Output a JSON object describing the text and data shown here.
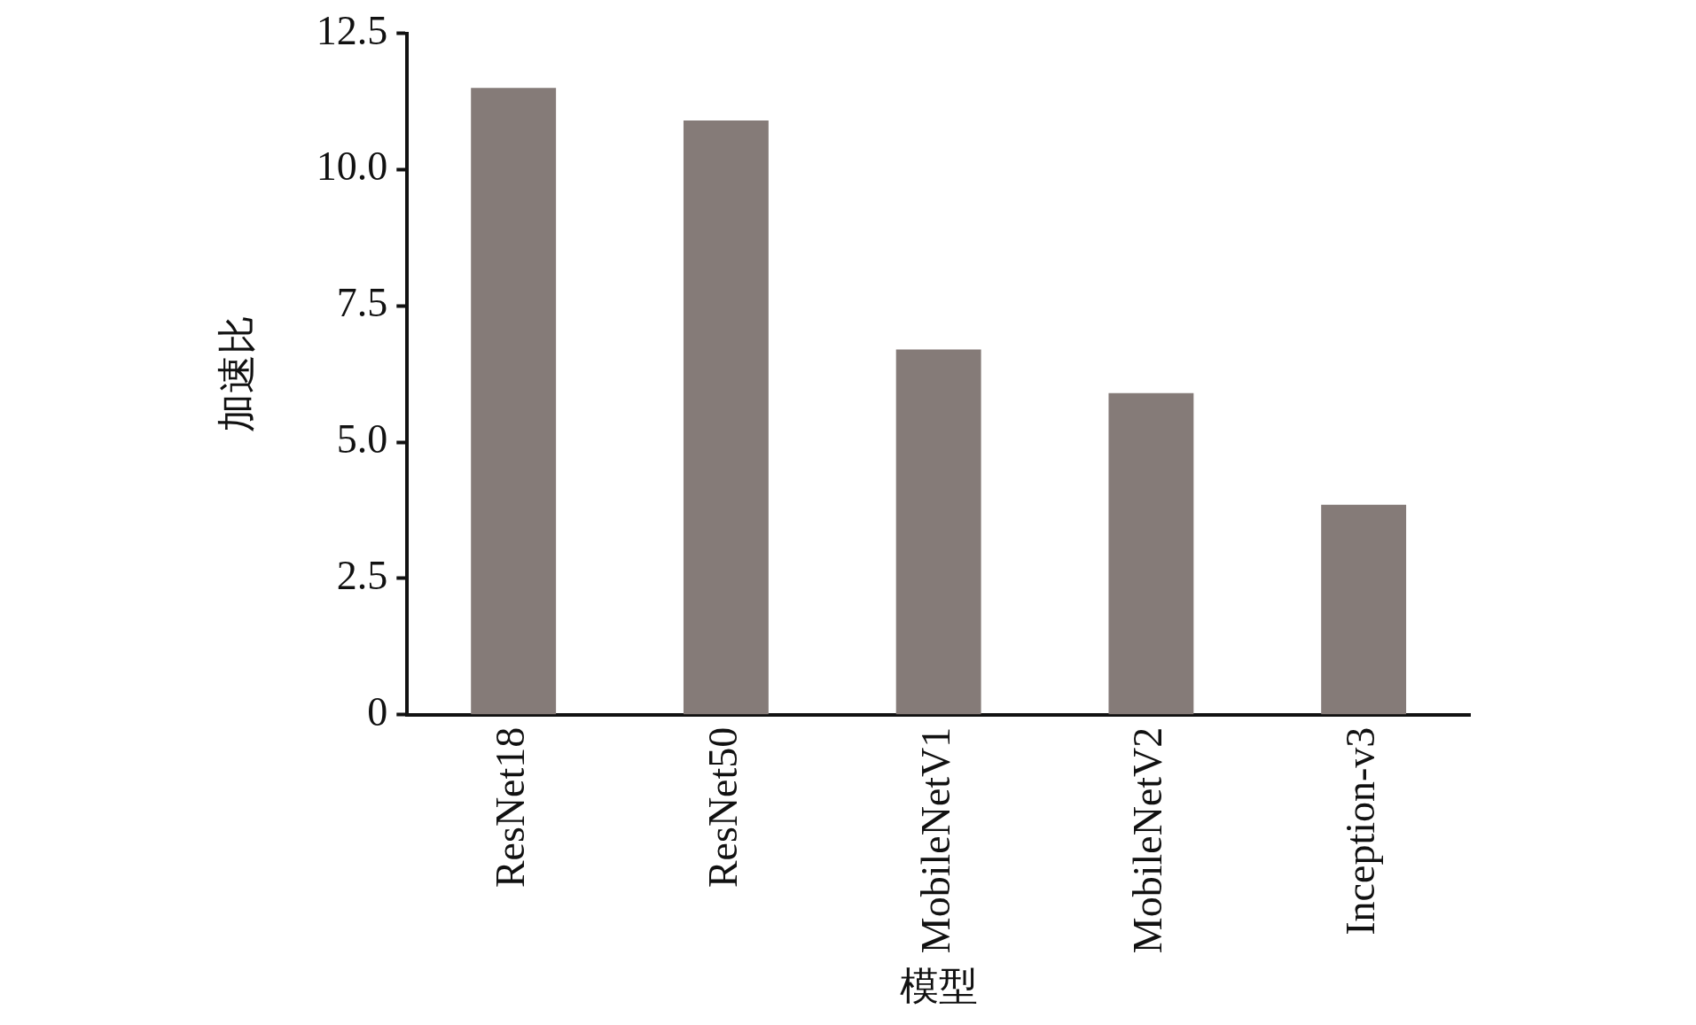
{
  "chart_data": {
    "type": "bar",
    "xlabel": "模型",
    "ylabel": "加速比",
    "categories": [
      "ResNet18",
      "ResNet50",
      "MobileNetV1",
      "MobileNetV2",
      "Inception-v3"
    ],
    "values": [
      11.5,
      10.9,
      6.7,
      5.9,
      3.85
    ],
    "color": "#857b78",
    "ylim": [
      0,
      12.5
    ],
    "yticks": [
      0,
      {
        "value": 2.5,
        "label": "2.5"
      },
      {
        "value": 5,
        "label": "5.0"
      },
      {
        "value": 7.5,
        "label": "7.5"
      },
      {
        "value": 10,
        "label": "10.0"
      },
      {
        "value": 12.5,
        "label": "12.5"
      }
    ],
    "grid": false,
    "legend": false
  }
}
